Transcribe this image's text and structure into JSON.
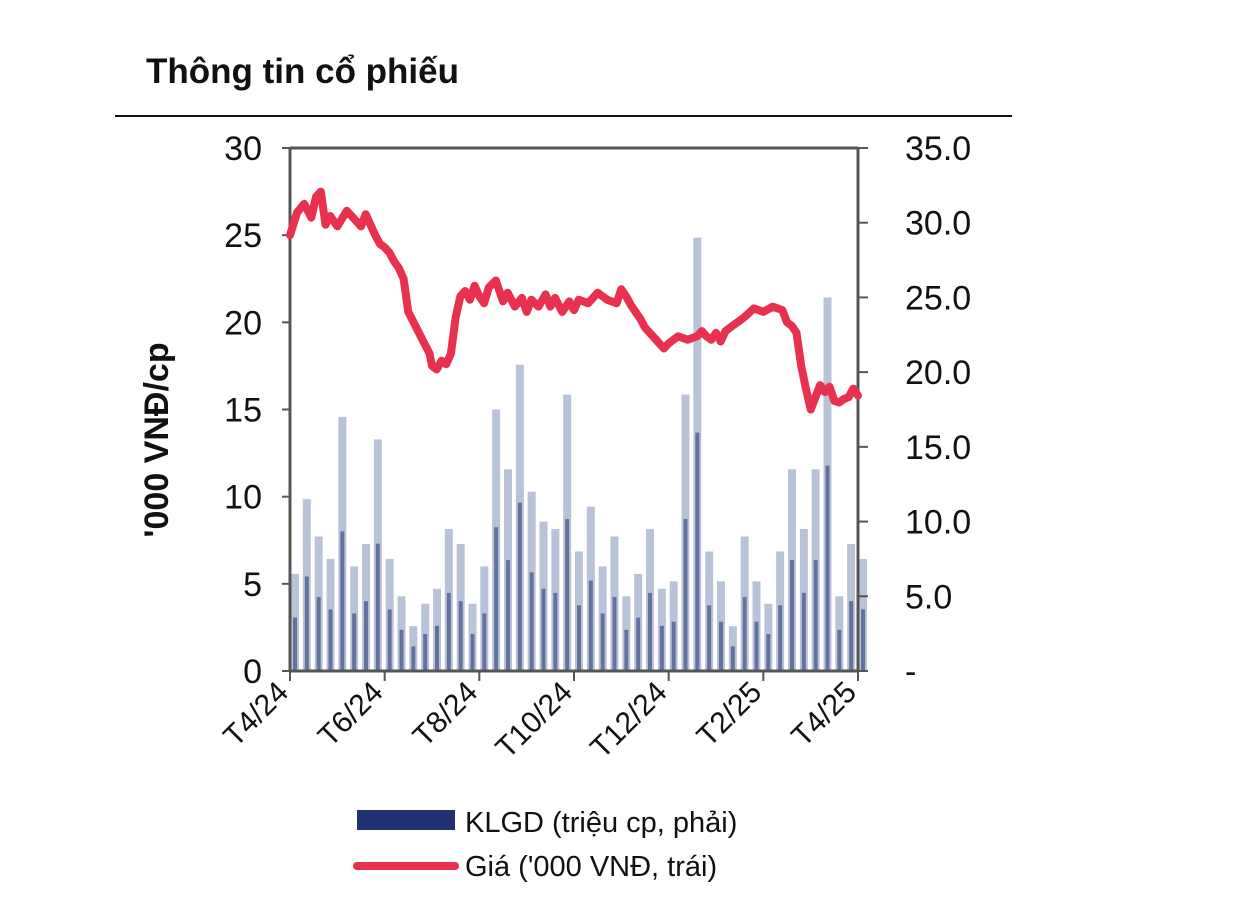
{
  "header": {
    "title": "Thông tin cổ phiếu"
  },
  "colors": {
    "price": "#e8304f",
    "volume_dark": "#1f3170",
    "volume_light": "#b9c3d8",
    "axis": "#555555"
  },
  "chart_data": {
    "type": "bar+line",
    "title": "Thông tin cổ phiếu",
    "xlabel": "",
    "ylabel_left": "'000 VNĐ/cp",
    "ylabel_right": "",
    "y_left_range": [
      0,
      30
    ],
    "y_left_ticks": [
      "0",
      "5",
      "10",
      "15",
      "20",
      "25",
      "30"
    ],
    "y_right_range": [
      0,
      35
    ],
    "y_right_ticks": [
      "-",
      "5.0",
      "10.0",
      "15.0",
      "20.0",
      "25.0",
      "30.0",
      "35.0"
    ],
    "x_ticks": [
      "T4/24",
      "T6/24",
      "T8/24",
      "T10/24",
      "T12/24",
      "T2/25",
      "T4/25"
    ],
    "legend": [
      {
        "name": "KLGD (triệu cp, phải)",
        "kind": "bar"
      },
      {
        "name": "Giá ('000 VNĐ, trái)",
        "kind": "line"
      }
    ],
    "series": [
      {
        "name": "Giá ('000 VNĐ, trái)",
        "axis": "left",
        "x_month": [
          0.0,
          0.15,
          0.3,
          0.45,
          0.55,
          0.65,
          0.75,
          0.85,
          1.0,
          1.2,
          1.4,
          1.5,
          1.6,
          1.8,
          1.9,
          2.0,
          2.1,
          2.2,
          2.3,
          2.4,
          2.5,
          2.65,
          2.8,
          2.95,
          3.0,
          3.1,
          3.2,
          3.3,
          3.4,
          3.5,
          3.6,
          3.7,
          3.8,
          3.9,
          4.0,
          4.1,
          4.2,
          4.35,
          4.5,
          4.6,
          4.75,
          4.9,
          5.0,
          5.1,
          5.25,
          5.4,
          5.5,
          5.6,
          5.75,
          5.9,
          6.0,
          6.1,
          6.3,
          6.5,
          6.7,
          6.9,
          7.0,
          7.1,
          7.2,
          7.3,
          7.4,
          7.5,
          7.7,
          7.9,
          8.0,
          8.2,
          8.4,
          8.6,
          8.7,
          8.8,
          8.9,
          9.0,
          9.1,
          9.2,
          9.4,
          9.5,
          9.6,
          9.8,
          10.0,
          10.2,
          10.4,
          10.5,
          10.6,
          10.7,
          10.8,
          10.9,
          11.0,
          11.1,
          11.2,
          11.3,
          11.4,
          11.5,
          11.6,
          11.7,
          11.8,
          11.9,
          12.0
        ],
        "values": [
          25.0,
          26.3,
          26.8,
          26.0,
          27.2,
          27.5,
          25.6,
          26.1,
          25.5,
          26.4,
          25.8,
          25.5,
          26.2,
          25.0,
          24.5,
          24.3,
          24.0,
          23.5,
          23.1,
          22.5,
          20.6,
          19.8,
          19.0,
          18.2,
          17.5,
          17.3,
          17.8,
          17.6,
          18.2,
          20.3,
          21.5,
          21.8,
          21.3,
          22.1,
          21.5,
          21.1,
          22.0,
          22.4,
          21.2,
          21.7,
          20.9,
          21.4,
          20.6,
          21.3,
          20.9,
          21.6,
          20.9,
          21.4,
          20.6,
          21.2,
          20.7,
          21.3,
          21.1,
          21.7,
          21.3,
          21.1,
          21.9,
          21.5,
          21.0,
          20.6,
          20.2,
          19.7,
          19.1,
          18.5,
          18.8,
          19.2,
          19.0,
          19.2,
          19.5,
          19.2,
          19.0,
          19.4,
          18.9,
          19.5,
          19.9,
          20.1,
          20.3,
          20.8,
          20.6,
          20.9,
          20.7,
          20.0,
          19.8,
          19.4,
          17.5,
          16.2,
          15.0,
          15.7,
          16.4,
          16.0,
          16.3,
          15.5,
          15.4,
          15.6,
          15.7,
          16.2,
          15.8
        ]
      },
      {
        "name": "KLGD (triệu cp, phải)",
        "axis": "right",
        "x_month": [
          0.0,
          0.25,
          0.5,
          0.75,
          1.0,
          1.25,
          1.5,
          1.75,
          2.0,
          2.25,
          2.5,
          2.75,
          3.0,
          3.25,
          3.5,
          3.75,
          4.0,
          4.25,
          4.5,
          4.75,
          5.0,
          5.25,
          5.5,
          5.75,
          6.0,
          6.25,
          6.5,
          6.75,
          7.0,
          7.25,
          7.5,
          7.75,
          8.0,
          8.25,
          8.5,
          8.75,
          9.0,
          9.25,
          9.5,
          9.75,
          10.0,
          10.25,
          10.5,
          10.75,
          11.0,
          11.25,
          11.5,
          11.75,
          12.0
        ],
        "values": [
          6.5,
          11.5,
          9.0,
          7.5,
          17.0,
          7.0,
          8.5,
          15.5,
          7.5,
          5.0,
          3.0,
          4.5,
          5.5,
          9.5,
          8.5,
          4.5,
          7.0,
          17.5,
          13.5,
          20.5,
          12.0,
          10.0,
          9.5,
          18.5,
          8.0,
          11.0,
          7.0,
          9.0,
          5.0,
          6.5,
          9.5,
          5.5,
          6.0,
          18.5,
          29.0,
          8.0,
          6.0,
          3.0,
          9.0,
          6.0,
          4.5,
          8.0,
          13.5,
          9.5,
          13.5,
          25.0,
          5.0,
          8.5,
          7.5
        ]
      }
    ]
  }
}
